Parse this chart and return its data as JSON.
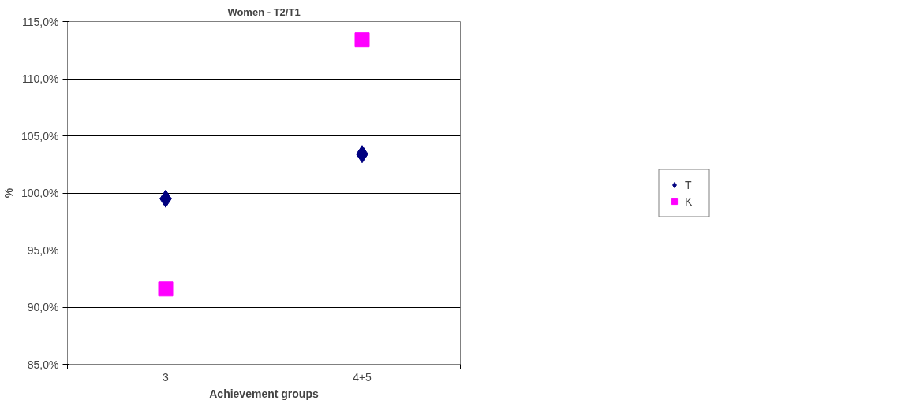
{
  "chart_data": {
    "type": "scatter",
    "title": "Women - T2/T1",
    "xlabel": "Achievement groups",
    "ylabel": "%",
    "categories": [
      "3",
      "4+5"
    ],
    "series": [
      {
        "name": "T",
        "color": "#000080",
        "marker": "diamond",
        "values": [
          99.5,
          103.4
        ]
      },
      {
        "name": "K",
        "color": "#ff00ff",
        "marker": "square",
        "values": [
          91.6,
          113.4
        ]
      }
    ],
    "ylim": [
      85,
      115
    ],
    "yticks": [
      {
        "value": 85,
        "label": "85,0%"
      },
      {
        "value": 90,
        "label": "90,0%"
      },
      {
        "value": 95,
        "label": "95,0%"
      },
      {
        "value": 100,
        "label": "100,0%"
      },
      {
        "value": 105,
        "label": "105,0%"
      },
      {
        "value": 110,
        "label": "110,0%"
      },
      {
        "value": 115,
        "label": "115,0%"
      }
    ],
    "grid": "y",
    "legend": "right"
  }
}
